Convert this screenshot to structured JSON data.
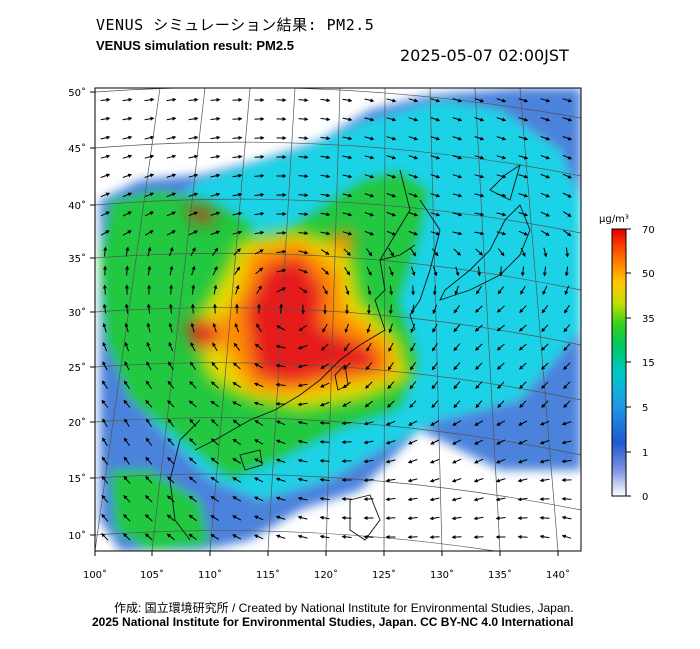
{
  "title_jp": "VENUS シミュレーション結果: PM2.5",
  "title_en": "VENUS simulation result: PM2.5",
  "timestamp": "2025-05-07 02:00JST",
  "credit_line1": "作成: 国立環境研究所 / Created by National Institute for Environmental Studies, Japan.",
  "credit_line2": "2025 National Institute for Environmental Studies, Japan. CC BY-NC 4.0 International",
  "map": {
    "lon_ticks": [
      "100˚",
      "105˚",
      "110˚",
      "115˚",
      "120˚",
      "125˚",
      "130˚",
      "135˚",
      "140˚"
    ],
    "lat_ticks": [
      "50˚",
      "45˚",
      "40˚",
      "35˚",
      "30˚",
      "25˚",
      "20˚",
      "15˚",
      "10˚"
    ]
  },
  "colorbar": {
    "unit": "μg/m³",
    "labels": [
      "70",
      "50",
      "35",
      "15",
      "5",
      "1",
      "0"
    ],
    "colors": [
      "#f00000",
      "#ff8c00",
      "#e0e000",
      "#00c800",
      "#00c8c8",
      "#1e5ad2",
      "#ffffff"
    ]
  },
  "colors": {
    "land_clean": "#1ed2e6",
    "water_clean": "#4b82dc",
    "moderate": "#20c840",
    "elevated": "#e6dc00",
    "high": "#ff8c00",
    "very_high": "#e61e1e"
  }
}
